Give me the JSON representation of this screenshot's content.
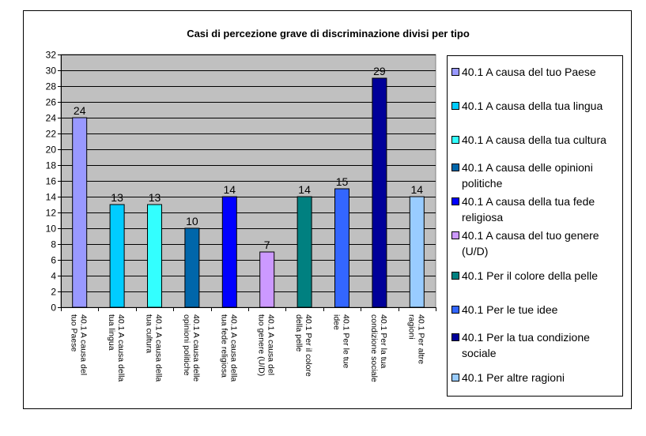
{
  "chart_data": {
    "type": "bar",
    "title": "Casi di percezione grave di discriminazione divisi per tipo",
    "xlabel": "",
    "ylabel": "",
    "ylim": [
      0,
      32
    ],
    "yticks": [
      0,
      2,
      4,
      6,
      8,
      10,
      12,
      14,
      16,
      18,
      20,
      22,
      24,
      26,
      28,
      30,
      32
    ],
    "grid": true,
    "legend_position": "right",
    "plot_background": "#c0c0c0",
    "categories": [
      [
        "40.1 A causa del",
        "tuo Paese"
      ],
      [
        "40.1 A causa della",
        "tua lingua"
      ],
      [
        "40.1 A causa della",
        "tua cultura"
      ],
      [
        "40.1 A causa delle",
        "opinioni politiche"
      ],
      [
        "40.1 A causa della",
        "tua fede religiosa"
      ],
      [
        "40.1 A causa del",
        "tuo genere (U/D)"
      ],
      [
        "40.1 Per il colore",
        "della pelle"
      ],
      [
        "40.1 Per le tue",
        "idee"
      ],
      [
        "40.1 Per la tua",
        "condizione sociale"
      ],
      [
        "40.1 Per altre",
        "ragioni"
      ]
    ],
    "values": [
      24,
      13,
      13,
      10,
      14,
      7,
      14,
      15,
      29,
      14
    ],
    "colors": [
      "#9999ff",
      "#00ccff",
      "#33ffff",
      "#0066aa",
      "#0000ff",
      "#cc99ff",
      "#008080",
      "#3366ff",
      "#000099",
      "#99ccff"
    ],
    "legend": [
      [
        "40.1 A causa del tuo Paese"
      ],
      [
        "40.1 A causa della tua lingua"
      ],
      [
        "40.1 A causa della tua cultura"
      ],
      [
        "40.1 A causa delle opinioni",
        "politiche"
      ],
      [
        "40.1 A causa della tua fede",
        "religiosa"
      ],
      [
        "40.1 A causa del tuo genere",
        "(U/D)"
      ],
      [
        "40.1 Per il colore della pelle"
      ],
      [
        "40.1 Per le tue idee"
      ],
      [
        "40.1 Per la tua condizione",
        "sociale"
      ],
      [
        "40.1 Per altre ragioni"
      ]
    ]
  }
}
